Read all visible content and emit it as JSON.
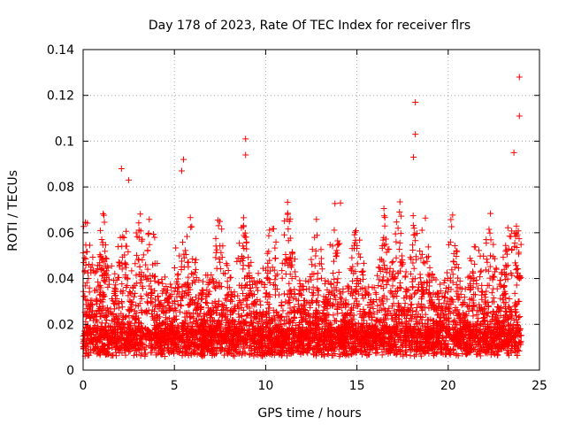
{
  "chart_data": {
    "type": "scatter",
    "title": "Day 178 of 2023, Rate Of TEC Index for receiver flrs",
    "xlabel": "GPS time / hours",
    "ylabel": "ROTI / TECUs",
    "xlim": [
      0,
      25
    ],
    "ylim": [
      0,
      0.14
    ],
    "xticks": [
      0,
      5,
      10,
      15,
      20,
      25
    ],
    "xtick_labels": [
      "0",
      "5",
      "10",
      "15",
      "20",
      "25"
    ],
    "yticks": [
      0,
      0.02,
      0.04,
      0.06,
      0.08,
      0.1,
      0.12,
      0.14
    ],
    "ytick_labels": [
      "0",
      "0.02",
      "0.04",
      "0.06",
      "0.08",
      "0.1",
      "0.12",
      "0.14"
    ],
    "grid": true,
    "marker": "+",
    "series": [
      {
        "name": "ROTI",
        "color": "#ff0000",
        "x_range": [
          0,
          24
        ],
        "y_range": [
          0.003,
          0.128
        ],
        "notable_points": [
          {
            "x": 2.1,
            "y": 0.088
          },
          {
            "x": 2.5,
            "y": 0.083
          },
          {
            "x": 5.4,
            "y": 0.087
          },
          {
            "x": 5.5,
            "y": 0.092
          },
          {
            "x": 8.9,
            "y": 0.101
          },
          {
            "x": 8.9,
            "y": 0.094
          },
          {
            "x": 14.1,
            "y": 0.073
          },
          {
            "x": 18.2,
            "y": 0.117
          },
          {
            "x": 18.2,
            "y": 0.103
          },
          {
            "x": 18.1,
            "y": 0.093
          },
          {
            "x": 23.6,
            "y": 0.095
          },
          {
            "x": 23.9,
            "y": 0.128
          },
          {
            "x": 23.9,
            "y": 0.111
          }
        ]
      }
    ]
  }
}
